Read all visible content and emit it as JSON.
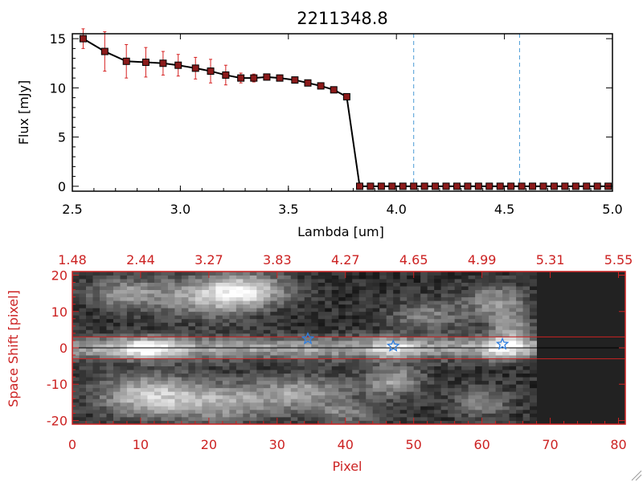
{
  "figure_title": "2211348.8",
  "colors": {
    "axis": "#000000",
    "spectrum_line": "#000000",
    "marker": "#8b1a1a",
    "errorbar": "#d62020",
    "dashed_marker": "#4a9bd6",
    "image_axis": "#cc2222",
    "star": "#2f7fe0"
  },
  "chart_data": [
    {
      "type": "line",
      "title": "2211348.8",
      "xlabel": "Lambda [um]",
      "ylabel": "Flux [mJy]",
      "xlim": [
        2.5,
        5.0
      ],
      "ylim": [
        -0.5,
        15.5
      ],
      "xticks": [
        "2.5",
        "3.0",
        "3.5",
        "4.0",
        "4.5",
        "5.0"
      ],
      "yticks": [
        "0",
        "5",
        "10",
        "15"
      ],
      "grid": false,
      "series": [
        {
          "x": [
            2.55,
            2.65,
            2.75,
            2.84,
            2.92,
            2.99,
            3.07,
            3.14,
            3.21,
            3.28,
            3.34,
            3.4,
            3.46,
            3.53,
            3.59,
            3.65,
            3.71,
            3.77,
            3.83,
            3.88,
            3.93,
            3.98,
            4.03,
            4.08,
            4.13,
            4.18,
            4.23,
            4.28,
            4.33,
            4.38,
            4.43,
            4.48,
            4.53,
            4.58,
            4.63,
            4.68,
            4.73,
            4.78,
            4.83,
            4.88,
            4.93,
            4.98
          ],
          "y": [
            15.0,
            13.7,
            12.7,
            12.6,
            12.5,
            12.3,
            12.0,
            11.7,
            11.3,
            11.0,
            11.0,
            11.1,
            11.0,
            10.8,
            10.5,
            10.2,
            9.8,
            9.1,
            0,
            0,
            0,
            0,
            0,
            0,
            0,
            0,
            0,
            0,
            0,
            0,
            0,
            0,
            0,
            0,
            0,
            0,
            0,
            0,
            0,
            0,
            0,
            0
          ],
          "yerr": [
            1.0,
            2.0,
            1.7,
            1.5,
            1.2,
            1.1,
            1.1,
            1.2,
            1.0,
            0.5,
            0.4,
            0.3,
            0.3,
            0.3,
            0.3,
            0.3,
            0.3,
            0.3,
            0,
            0,
            0,
            0,
            0,
            0,
            0,
            0,
            0,
            0,
            0,
            0,
            0,
            0,
            0,
            0,
            0,
            0,
            0,
            0,
            0,
            0,
            0,
            0
          ]
        }
      ],
      "vlines": [
        4.08,
        4.57
      ]
    },
    {
      "type": "heatmap",
      "xlabel": "Pixel",
      "ylabel": "Space Shift [pixel]",
      "xlim": [
        0,
        81
      ],
      "ylim": [
        -21,
        21
      ],
      "xticks": [
        "0",
        "10",
        "20",
        "30",
        "40",
        "50",
        "60",
        "70",
        "80"
      ],
      "yticks": [
        "-20",
        "-10",
        "0",
        "10",
        "20"
      ],
      "top_ticks": [
        "1.48",
        "2.44",
        "3.27",
        "3.83",
        "4.27",
        "4.65",
        "4.99",
        "5.31",
        "5.55"
      ],
      "hlines": [
        3,
        -3
      ],
      "data_extent_x": [
        0,
        68
      ],
      "stars": [
        {
          "x": 34.5,
          "y": 2.5
        },
        {
          "x": 47,
          "y": 0.5
        },
        {
          "x": 63,
          "y": 1
        }
      ]
    }
  ]
}
